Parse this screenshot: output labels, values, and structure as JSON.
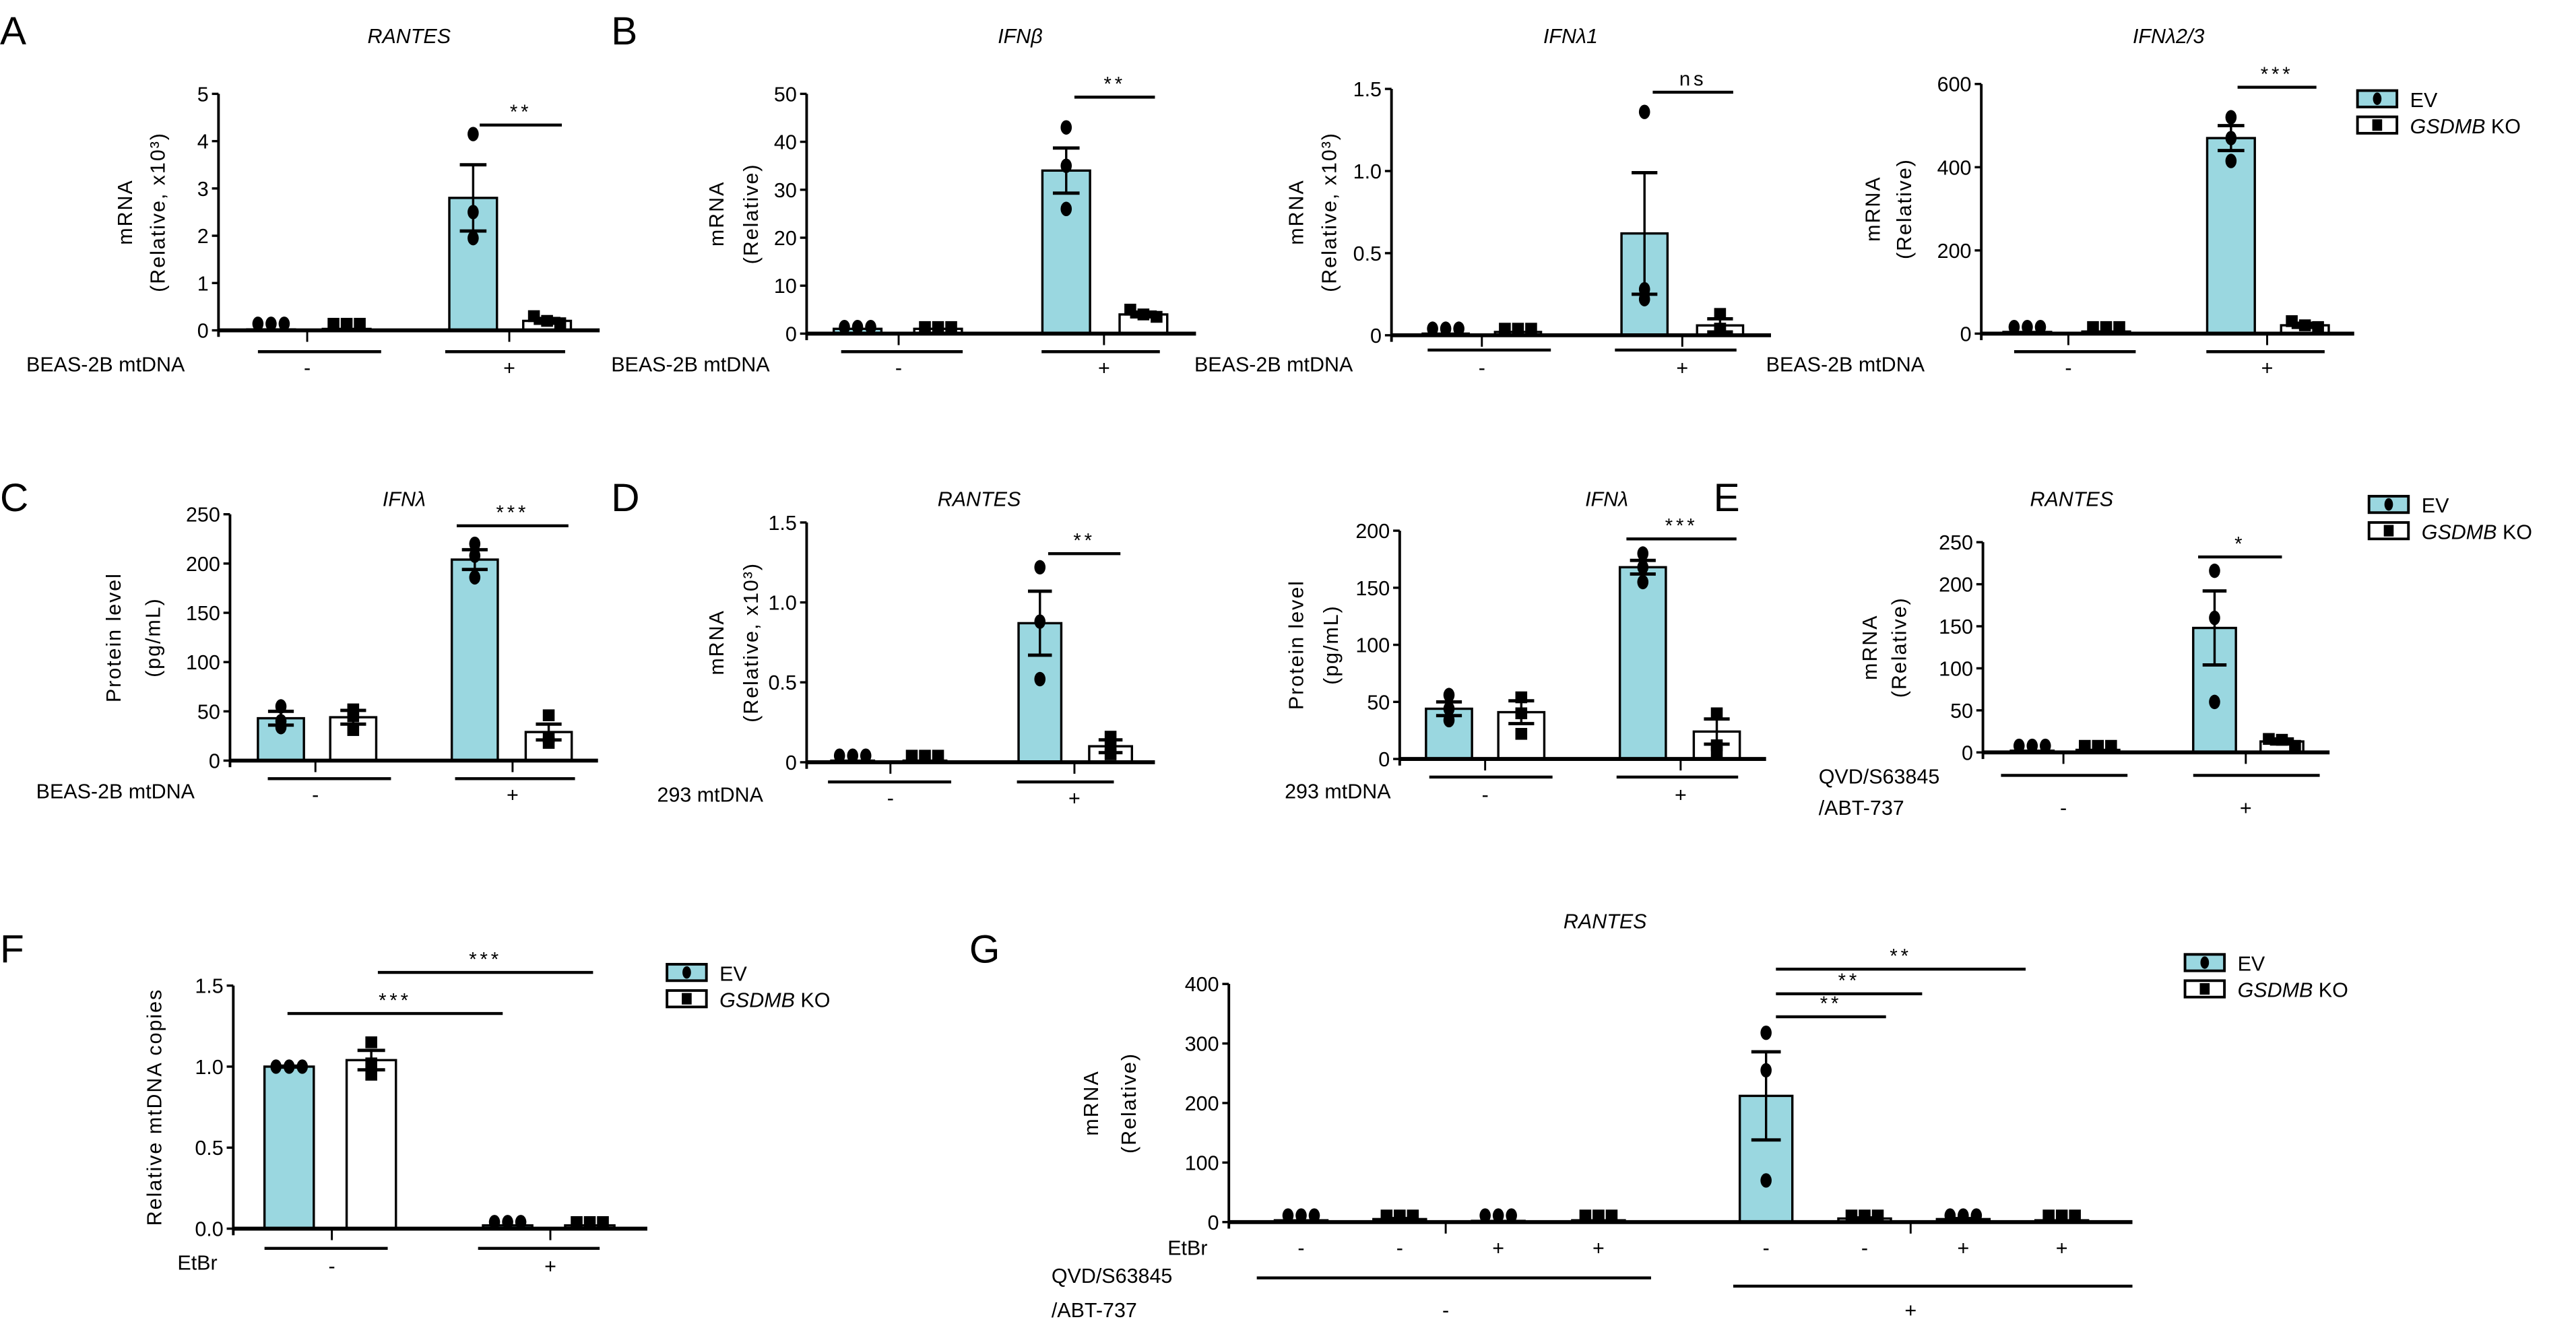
{
  "panel_labels": [
    "A",
    "B",
    "C",
    "D",
    "E",
    "F",
    "G"
  ],
  "legend": {
    "series": [
      {
        "name": "EV",
        "color": "#9ad7e0",
        "marker": "circle"
      },
      {
        "name": "GSDMB KO",
        "color": "#ffffff",
        "marker": "square"
      }
    ]
  },
  "chart_data": [
    {
      "panel": "A",
      "type": "bar",
      "title": "RANTES",
      "ylabel": [
        "mRNA",
        "(Relative, x10³)"
      ],
      "ylim": [
        0,
        5
      ],
      "yticks": [
        "0",
        "1",
        "2",
        "3",
        "4",
        "5"
      ],
      "condition_label": [
        "BEAS-2B mtDNA"
      ],
      "groups": [
        {
          "label": "-",
          "bars": [
            {
              "series": "EV",
              "mean": 0.02,
              "sem": 0,
              "points": [
                0.02,
                0.02,
                0.02
              ]
            },
            {
              "series": "GSDMB KO",
              "mean": 0.03,
              "sem": 0,
              "points": [
                0.03,
                0.03,
                0.03
              ]
            }
          ]
        },
        {
          "label": "+",
          "bars": [
            {
              "series": "EV",
              "mean": 2.8,
              "sem": 0.7,
              "points": [
                4.15,
                2.5,
                1.95
              ]
            },
            {
              "series": "GSDMB KO",
              "mean": 0.2,
              "sem": 0.05,
              "points": [
                0.3,
                0.2,
                0.15
              ]
            }
          ]
        }
      ],
      "significance": [
        {
          "between": [
            2,
            3
          ],
          "label": "**"
        }
      ]
    },
    {
      "panel": "B",
      "type": "bar",
      "title": "IFNβ",
      "ylabel": [
        "mRNA",
        "(Relative)"
      ],
      "ylim": [
        0,
        50
      ],
      "yticks": [
        "0",
        "10",
        "20",
        "30",
        "40",
        "50"
      ],
      "condition_label": [
        "BEAS-2B mtDNA"
      ],
      "groups": [
        {
          "label": "-",
          "bars": [
            {
              "series": "EV",
              "mean": 1,
              "sem": 0,
              "points": [
                1,
                1,
                1
              ]
            },
            {
              "series": "GSDMB KO",
              "mean": 1,
              "sem": 0,
              "points": [
                1,
                1,
                1
              ]
            }
          ]
        },
        {
          "label": "+",
          "bars": [
            {
              "series": "EV",
              "mean": 34,
              "sem": 4.7,
              "points": [
                43,
                35,
                26
              ]
            },
            {
              "series": "GSDMB KO",
              "mean": 4,
              "sem": 0.5,
              "points": [
                5,
                4,
                3.5
              ]
            }
          ]
        }
      ],
      "significance": [
        {
          "between": [
            2,
            3
          ],
          "label": "**"
        }
      ]
    },
    {
      "panel": "B",
      "type": "bar",
      "title": "IFNλ1",
      "ylabel": [
        "mRNA",
        "(Relative, x10³)"
      ],
      "ylim": [
        0,
        1.5
      ],
      "yticks": [
        "0",
        "0.5",
        "1.0",
        "1.5"
      ],
      "condition_label": [
        "BEAS-2B mtDNA"
      ],
      "groups": [
        {
          "label": "-",
          "bars": [
            {
              "series": "EV",
              "mean": 0.01,
              "sem": 0,
              "points": [
                0.01,
                0.01,
                0.01
              ]
            },
            {
              "series": "GSDMB KO",
              "mean": 0.02,
              "sem": 0,
              "points": [
                0.02,
                0.02,
                0.02
              ]
            }
          ]
        },
        {
          "label": "+",
          "bars": [
            {
              "series": "EV",
              "mean": 0.62,
              "sem": 0.37,
              "points": [
                1.36,
                0.28,
                0.22
              ]
            },
            {
              "series": "GSDMB KO",
              "mean": 0.06,
              "sem": 0.04,
              "points": [
                0.13,
                0.04,
                0.03
              ]
            }
          ]
        }
      ],
      "significance": [
        {
          "between": [
            2,
            3
          ],
          "label": "ns"
        }
      ]
    },
    {
      "panel": "B",
      "type": "bar",
      "title": "IFNλ2/3",
      "ylabel": [
        "mRNA",
        "(Relative)"
      ],
      "ylim": [
        0,
        600
      ],
      "yticks": [
        "0",
        "200",
        "400",
        "600"
      ],
      "condition_label": [
        "BEAS-2B mtDNA"
      ],
      "groups": [
        {
          "label": "-",
          "bars": [
            {
              "series": "EV",
              "mean": 4,
              "sem": 0,
              "points": [
                4,
                4,
                4
              ]
            },
            {
              "series": "GSDMB KO",
              "mean": 5,
              "sem": 0,
              "points": [
                5,
                5,
                5
              ]
            }
          ]
        },
        {
          "label": "+",
          "bars": [
            {
              "series": "EV",
              "mean": 470,
              "sem": 30,
              "points": [
                520,
                470,
                415
              ]
            },
            {
              "series": "GSDMB KO",
              "mean": 20,
              "sem": 5,
              "points": [
                30,
                20,
                15
              ]
            }
          ]
        }
      ],
      "significance": [
        {
          "between": [
            2,
            3
          ],
          "label": "***"
        }
      ]
    },
    {
      "panel": "C",
      "type": "bar",
      "title": "IFNλ",
      "ylabel": [
        "Protein level",
        "(pg/mL)"
      ],
      "ylim": [
        0,
        250
      ],
      "yticks": [
        "0",
        "50",
        "100",
        "150",
        "200",
        "250"
      ],
      "condition_label": [
        "BEAS-2B mtDNA"
      ],
      "groups": [
        {
          "label": "-",
          "bars": [
            {
              "series": "EV",
              "mean": 43,
              "sem": 7,
              "points": [
                55,
                40,
                34
              ]
            },
            {
              "series": "GSDMB KO",
              "mean": 44,
              "sem": 7,
              "points": [
                52,
                45,
                31
              ]
            }
          ]
        },
        {
          "label": "+",
          "bars": [
            {
              "series": "EV",
              "mean": 204,
              "sem": 10,
              "points": [
                220,
                208,
                186
              ]
            },
            {
              "series": "GSDMB KO",
              "mean": 29,
              "sem": 8,
              "points": [
                46,
                24,
                18
              ]
            }
          ]
        }
      ],
      "significance": [
        {
          "between": [
            2,
            3
          ],
          "label": "***"
        }
      ]
    },
    {
      "panel": "D",
      "type": "bar",
      "title": "RANTES",
      "ylabel": [
        "mRNA",
        "(Relative, x10³)"
      ],
      "ylim": [
        0,
        1.5
      ],
      "yticks": [
        "0",
        "0.5",
        "1.0",
        "1.5"
      ],
      "condition_label": [
        "293 mtDNA"
      ],
      "groups": [
        {
          "label": "-",
          "bars": [
            {
              "series": "EV",
              "mean": 0.01,
              "sem": 0,
              "points": [
                0.01,
                0.01,
                0.01
              ]
            },
            {
              "series": "GSDMB KO",
              "mean": 0.01,
              "sem": 0,
              "points": [
                0.01,
                0.01,
                0.01
              ]
            }
          ]
        },
        {
          "label": "+",
          "bars": [
            {
              "series": "EV",
              "mean": 0.87,
              "sem": 0.2,
              "points": [
                1.22,
                0.88,
                0.52
              ]
            },
            {
              "series": "GSDMB KO",
              "mean": 0.1,
              "sem": 0.04,
              "points": [
                0.16,
                0.09,
                0.05
              ]
            }
          ]
        }
      ],
      "significance": [
        {
          "between": [
            2,
            3
          ],
          "label": "**"
        }
      ]
    },
    {
      "panel": "D",
      "type": "bar",
      "title": "IFNλ",
      "ylabel": [
        "Protein level",
        "(pg/mL)"
      ],
      "ylim": [
        0,
        200
      ],
      "yticks": [
        "0",
        "50",
        "100",
        "150",
        "200"
      ],
      "condition_label": [
        "293 mtDNA"
      ],
      "groups": [
        {
          "label": "-",
          "bars": [
            {
              "series": "EV",
              "mean": 44,
              "sem": 6,
              "points": [
                56,
                44,
                34
              ]
            },
            {
              "series": "GSDMB KO",
              "mean": 41,
              "sem": 10,
              "points": [
                54,
                40,
                22
              ]
            }
          ]
        },
        {
          "label": "+",
          "bars": [
            {
              "series": "EV",
              "mean": 168,
              "sem": 6,
              "points": [
                180,
                168,
                155
              ]
            },
            {
              "series": "GSDMB KO",
              "mean": 24,
              "sem": 11,
              "points": [
                40,
                12,
                4
              ]
            }
          ]
        }
      ],
      "significance": [
        {
          "between": [
            2,
            3
          ],
          "label": "***"
        }
      ]
    },
    {
      "panel": "E",
      "type": "bar",
      "title": "RANTES",
      "ylabel": [
        "mRNA",
        "(Relative)"
      ],
      "ylim": [
        0,
        250
      ],
      "yticks": [
        "0",
        "50",
        "100",
        "150",
        "200",
        "250"
      ],
      "condition_label": [
        "QVD/S63845",
        "/ABT-737"
      ],
      "groups": [
        {
          "label": "-",
          "bars": [
            {
              "series": "EV",
              "mean": 2,
              "sem": 0,
              "points": [
                2,
                2,
                2
              ]
            },
            {
              "series": "GSDMB KO",
              "mean": 3,
              "sem": 0,
              "points": [
                3,
                3,
                3
              ]
            }
          ]
        },
        {
          "label": "+",
          "bars": [
            {
              "series": "EV",
              "mean": 148,
              "sem": 44,
              "points": [
                216,
                160,
                60
              ]
            },
            {
              "series": "GSDMB KO",
              "mean": 13,
              "sem": 3,
              "points": [
                16,
                15,
                7
              ]
            }
          ]
        }
      ],
      "significance": [
        {
          "between": [
            2,
            3
          ],
          "label": "*"
        }
      ]
    },
    {
      "panel": "F",
      "type": "bar",
      "title": "",
      "ylabel": [
        "Relative mtDNA copies"
      ],
      "ylim": [
        0,
        1.5
      ],
      "yticks": [
        "0.0",
        "0.5",
        "1.0",
        "1.5"
      ],
      "condition_label": [
        "EtBr"
      ],
      "groups": [
        {
          "label": "-",
          "bars": [
            {
              "series": "EV",
              "mean": 1.0,
              "sem": 0.003,
              "points": [
                1.0,
                1.0,
                1.0
              ]
            },
            {
              "series": "GSDMB KO",
              "mean": 1.04,
              "sem": 0.06,
              "points": [
                1.15,
                1.02,
                0.95
              ]
            }
          ]
        },
        {
          "label": "+",
          "bars": [
            {
              "series": "EV",
              "mean": 0.02,
              "sem": 0,
              "points": [
                0.02,
                0.03,
                0.02
              ]
            },
            {
              "series": "GSDMB KO",
              "mean": 0.02,
              "sem": 0,
              "points": [
                0.02,
                0.02,
                0.02
              ]
            }
          ]
        }
      ],
      "significance": [
        {
          "between": [
            0,
            2
          ],
          "label": "***"
        },
        {
          "between": [
            1,
            3
          ],
          "label": "***"
        }
      ]
    },
    {
      "panel": "G",
      "type": "bar",
      "title": "RANTES",
      "ylabel": [
        "mRNA",
        "(Relative)"
      ],
      "ylim": [
        0,
        400
      ],
      "yticks": [
        "0",
        "100",
        "200",
        "300",
        "400"
      ],
      "condition_label": [
        "QVD/S63845",
        "/ABT-737"
      ],
      "conditions": [
        {
          "label": "EtBr",
          "values": [
            "-",
            "-",
            "+",
            "+",
            "-",
            "-",
            "+",
            "+"
          ]
        }
      ],
      "groups": [
        {
          "label": "-",
          "bars": [
            {
              "series": "EV",
              "mean": 3,
              "sem": 0,
              "points": [
                3,
                3,
                3
              ]
            },
            {
              "series": "GSDMB KO",
              "mean": 5,
              "sem": 1,
              "points": [
                6,
                5,
                4
              ]
            },
            {
              "series": "EV",
              "mean": 2,
              "sem": 0,
              "points": [
                2,
                2,
                2
              ]
            },
            {
              "series": "GSDMB KO",
              "mean": 3,
              "sem": 0,
              "points": [
                3,
                3,
                3
              ]
            }
          ]
        },
        {
          "label": "+",
          "bars": [
            {
              "series": "EV",
              "mean": 212,
              "sem": 74,
              "points": [
                318,
                255,
                70
              ]
            },
            {
              "series": "GSDMB KO",
              "mean": 6,
              "sem": 1,
              "points": [
                7,
                6,
                5
              ]
            },
            {
              "series": "EV",
              "mean": 5,
              "sem": 1,
              "points": [
                7,
                4,
                4
              ]
            },
            {
              "series": "GSDMB KO",
              "mean": 3,
              "sem": 0,
              "points": [
                3,
                3,
                3
              ]
            }
          ]
        }
      ],
      "significance": [
        {
          "between": [
            4,
            5
          ],
          "label": "**"
        },
        {
          "between": [
            4,
            6
          ],
          "label": "**"
        },
        {
          "between": [
            4,
            7
          ],
          "label": "**"
        }
      ]
    }
  ]
}
